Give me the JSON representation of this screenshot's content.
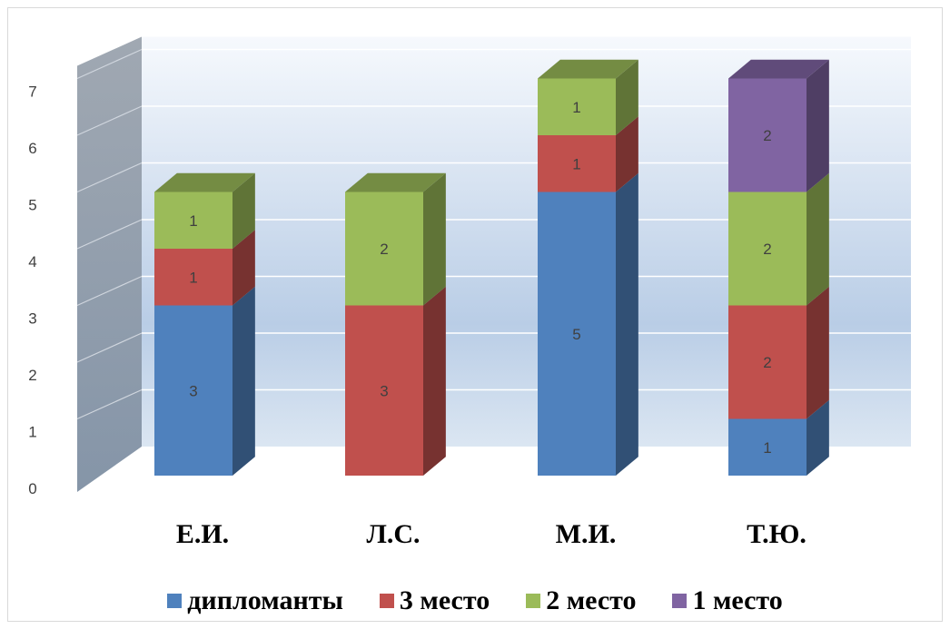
{
  "chart_data": {
    "type": "bar",
    "stacked": true,
    "three_d": true,
    "categories": [
      "Е.И.",
      "Л.С.",
      "М.И.",
      "Т.Ю."
    ],
    "series": [
      {
        "name": "дипломанты",
        "values": [
          3,
          0,
          5,
          1
        ],
        "color": "#4f81bd"
      },
      {
        "name": "3 место",
        "values": [
          1,
          3,
          1,
          2
        ],
        "color": "#c0504d"
      },
      {
        "name": "2 место",
        "values": [
          1,
          2,
          1,
          2
        ],
        "color": "#9bbb59"
      },
      {
        "name": "1 место",
        "values": [
          0,
          0,
          0,
          2
        ],
        "color": "#8064a2"
      }
    ],
    "ylim": [
      0,
      7
    ],
    "yticks": [
      0,
      1,
      2,
      3,
      4,
      5,
      6,
      7
    ],
    "grid": true,
    "legend": "bottom"
  }
}
